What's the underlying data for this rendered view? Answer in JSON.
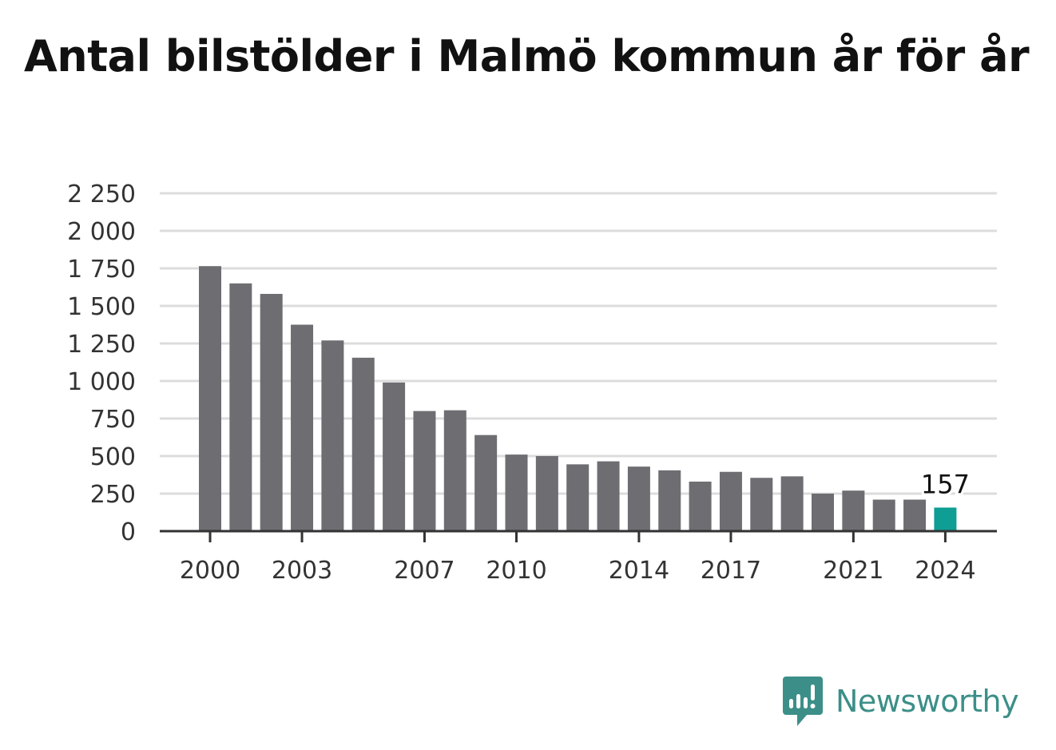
{
  "title": "Antal bilstölder i Malmö kommun år för år",
  "brand": {
    "name": "Newsworthy",
    "icon": "newsworthy-logo-icon"
  },
  "colors": {
    "bar": "#6e6d72",
    "highlight": "#0e9e94",
    "grid": "#dcdcdc",
    "axis": "#333333",
    "brand": "#3c8f88"
  },
  "chart_data": {
    "type": "bar",
    "title": "Antal bilstölder i Malmö kommun år för år",
    "xlabel": "",
    "ylabel": "",
    "ylim": [
      0,
      2250
    ],
    "yticks": [
      0,
      250,
      500,
      750,
      1000,
      1250,
      1500,
      1750,
      2000,
      2250
    ],
    "ytick_labels": [
      "0",
      "250",
      "500",
      "750",
      "1 000",
      "1 250",
      "1 500",
      "1 750",
      "2 000",
      "2 250"
    ],
    "categories": [
      "2000",
      "2001",
      "2002",
      "2003",
      "2004",
      "2005",
      "2006",
      "2007",
      "2008",
      "2009",
      "2010",
      "2011",
      "2012",
      "2013",
      "2014",
      "2015",
      "2016",
      "2017",
      "2018",
      "2019",
      "2020",
      "2021",
      "2022",
      "2023",
      "2024"
    ],
    "x_tick_labels": [
      "2000",
      "2003",
      "2007",
      "2010",
      "2014",
      "2017",
      "2021",
      "2024"
    ],
    "values": [
      1765,
      1650,
      1580,
      1375,
      1270,
      1155,
      990,
      800,
      805,
      640,
      510,
      500,
      445,
      465,
      430,
      405,
      330,
      395,
      355,
      365,
      250,
      270,
      210,
      210,
      157
    ],
    "highlight_index": 24,
    "annotation": {
      "category": "2024",
      "text": "157"
    },
    "grid": true,
    "legend": "none"
  }
}
